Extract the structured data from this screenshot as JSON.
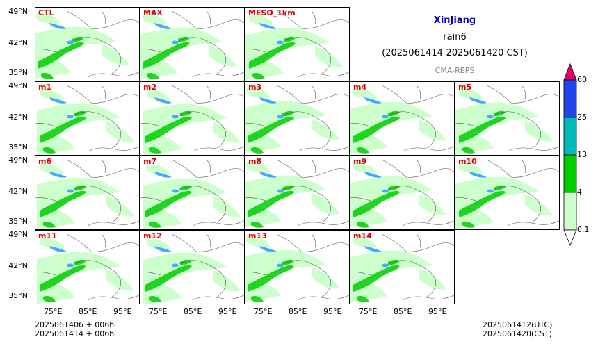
{
  "title": {
    "region": "XinJiang",
    "variable": "rain6",
    "period": "(2025061414-2025061420 CST)",
    "source": "CMA-REPS"
  },
  "panels": [
    {
      "label": "CTL",
      "row": 0,
      "col": 0
    },
    {
      "label": "MAX",
      "row": 0,
      "col": 1
    },
    {
      "label": "MESO_1km",
      "row": 0,
      "col": 2
    },
    {
      "label": "m1",
      "row": 1,
      "col": 0
    },
    {
      "label": "m2",
      "row": 1,
      "col": 1
    },
    {
      "label": "m3",
      "row": 1,
      "col": 2
    },
    {
      "label": "m4",
      "row": 1,
      "col": 3
    },
    {
      "label": "m5",
      "row": 1,
      "col": 4
    },
    {
      "label": "m6",
      "row": 2,
      "col": 0
    },
    {
      "label": "m7",
      "row": 2,
      "col": 1
    },
    {
      "label": "m8",
      "row": 2,
      "col": 2
    },
    {
      "label": "m9",
      "row": 2,
      "col": 3
    },
    {
      "label": "m10",
      "row": 2,
      "col": 4
    },
    {
      "label": "m11",
      "row": 3,
      "col": 0
    },
    {
      "label": "m12",
      "row": 3,
      "col": 1
    },
    {
      "label": "m13",
      "row": 3,
      "col": 2
    },
    {
      "label": "m14",
      "row": 3,
      "col": 3
    }
  ],
  "lat_labels": [
    "49°N",
    "42°N",
    "35°N"
  ],
  "lon_labels": [
    "75°E",
    "85°E",
    "95°E"
  ],
  "colorbar": {
    "ticks": [
      "0.1",
      "4",
      "13",
      "25",
      "60"
    ],
    "colors": [
      "#ccffcc",
      "#00cc00",
      "#00bbbb",
      "#2244ee",
      "#e0006e"
    ]
  },
  "footer": {
    "init_line": "2025061406  +  006h",
    "valid_line": "2025061414  +  006h",
    "utc": "2025061412(UTC)",
    "cst": "2025061420(CST)"
  }
}
